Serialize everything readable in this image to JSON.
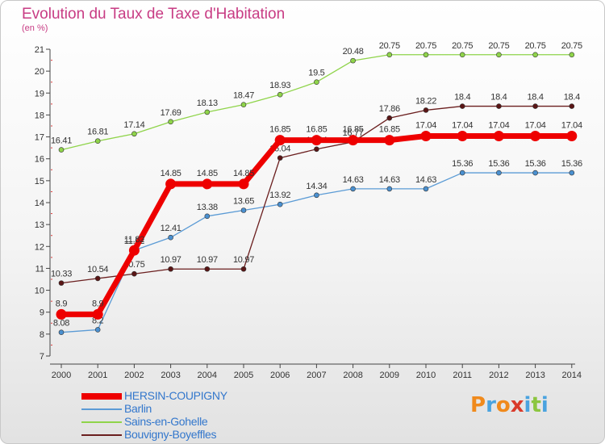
{
  "header": {
    "title": "Evolution du Taux de Taxe d'Habitation",
    "subtitle": "(en %)"
  },
  "legend": [
    {
      "label": "HERSIN-COUPIGNY",
      "color": "#ee0000",
      "thick": true
    },
    {
      "label": "Barlin",
      "color": "#5b9bd5"
    },
    {
      "label": "Sains-en-Gohelle",
      "color": "#8fd44a"
    },
    {
      "label": "Bouvigny-Boyeffles",
      "color": "#6b1f1f"
    }
  ],
  "logo": {
    "text": "Proxiti",
    "colors": [
      "#f08a1c",
      "#4aa3df",
      "#f08a1c",
      "#d93a2b",
      "#4aa3df",
      "#8cc63f",
      "#4aa3df"
    ]
  },
  "chart_data": {
    "type": "line",
    "title": "Evolution du Taux de Taxe d'Habitation",
    "subtitle": "(en %)",
    "x": [
      "2000",
      "2001",
      "2002",
      "2003",
      "2004",
      "2005",
      "2006",
      "2007",
      "2008",
      "2009",
      "2010",
      "2011",
      "2012",
      "2013",
      "2014"
    ],
    "ylim": [
      7,
      21
    ],
    "yticks": [
      7,
      8,
      9,
      10,
      11,
      12,
      13,
      14,
      15,
      16,
      17,
      18,
      19,
      20,
      21
    ],
    "grid": false,
    "legend_position": "bottom-left",
    "series": [
      {
        "name": "Sains-en-Gohelle",
        "color": "#8fd44a",
        "marker": "#8fd44a",
        "width": 1.3,
        "values": [
          16.41,
          16.81,
          17.14,
          17.69,
          18.13,
          18.47,
          18.93,
          19.5,
          20.48,
          20.75,
          20.75,
          20.75,
          20.75,
          20.75,
          20.75
        ],
        "labels": [
          "16.41",
          "16.81",
          "17.14",
          "17.69",
          "18.13",
          "18.47",
          "18.93",
          "19.5",
          "20.48",
          "20.75",
          "20.75",
          "20.75",
          "20.75",
          "20.75",
          "20.75"
        ]
      },
      {
        "name": "Barlin",
        "color": "#5b9bd5",
        "marker": "#4a90d0",
        "width": 1.3,
        "values": [
          8.08,
          8.2,
          11.82,
          12.41,
          13.38,
          13.65,
          13.92,
          14.34,
          14.63,
          14.63,
          14.63,
          15.36,
          15.36,
          15.36,
          15.36
        ],
        "labels": [
          "8.08",
          "8.2",
          "11.82",
          "12.41",
          "13.38",
          "13.65",
          "13.92",
          "14.34",
          "14.63",
          "14.63",
          "14.63",
          "15.36",
          "15.36",
          "15.36",
          "15.36"
        ]
      },
      {
        "name": "Bouvigny-Boyeffles",
        "color": "#6b1f1f",
        "marker": "#5a1515",
        "width": 1.3,
        "values": [
          10.33,
          10.54,
          10.75,
          10.97,
          10.97,
          10.97,
          16.04,
          16.44,
          16.77,
          17.86,
          18.22,
          18.4,
          18.4,
          18.4,
          18.4
        ],
        "labels": [
          "10.33",
          "10.54",
          "10.75",
          "10.97",
          "10.97",
          "10.97",
          "16.04",
          "16.44",
          "16.77",
          "17.86",
          "18.22",
          "18.4",
          "18.4",
          "18.4",
          "18.4"
        ]
      },
      {
        "name": "HERSIN-COUPIGNY",
        "color": "#ee0000",
        "marker": "#ee0000",
        "width": 7,
        "values": [
          8.9,
          8.9,
          11.82,
          14.85,
          14.85,
          14.85,
          16.85,
          16.85,
          16.85,
          16.85,
          17.04,
          17.04,
          17.04,
          17.04,
          17.04
        ],
        "labels": [
          "8.9",
          "8.9",
          "11.82",
          "14.85",
          "14.85",
          "14.85",
          "16.85",
          "16.85",
          "16.85",
          "16.85",
          "17.04",
          "17.04",
          "17.04",
          "17.04",
          "17.04"
        ]
      }
    ]
  }
}
